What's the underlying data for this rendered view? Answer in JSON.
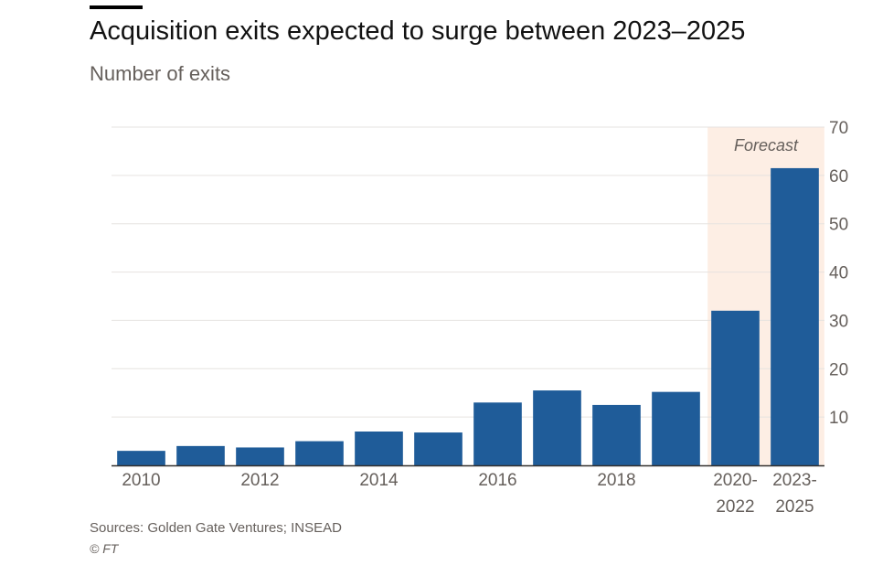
{
  "title": "Acquisition exits expected to surge between 2023–2025",
  "subtitle": "Number of exits",
  "source": "Sources: Golden Gate Ventures; INSEAD",
  "copyright": "© FT",
  "colors": {
    "bar": "#1f5c99",
    "forecast_band": "#fdeee4",
    "grid": "#e6e3e0",
    "axis": "#33302e",
    "text": "#66605c"
  },
  "chart_data": {
    "type": "bar",
    "title": "Acquisition exits expected to surge between 2023–2025",
    "subtitle": "Number of exits",
    "categories": [
      "2010",
      "2011",
      "2012",
      "2013",
      "2014",
      "2015",
      "2016",
      "2017",
      "2018",
      "2019",
      "2020-2022",
      "2023-2025"
    ],
    "category_tick_labels": [
      [
        "2010"
      ],
      [
        ""
      ],
      [
        "2012"
      ],
      [
        ""
      ],
      [
        "2014"
      ],
      [
        ""
      ],
      [
        "2016"
      ],
      [
        ""
      ],
      [
        "2018"
      ],
      [
        ""
      ],
      [
        "2020-",
        "2022"
      ],
      [
        "2023-",
        "2025"
      ]
    ],
    "values": [
      3,
      4,
      3.7,
      5,
      7,
      6.8,
      13,
      15.5,
      12.5,
      15.2,
      32,
      61.5
    ],
    "ylim": [
      0,
      70
    ],
    "yticks": [
      10,
      20,
      30,
      40,
      50,
      60,
      70
    ],
    "ytick_labels": [
      "10",
      "20",
      "30",
      "40",
      "50",
      "60",
      "70"
    ],
    "grid": true,
    "forecast": {
      "label": "Forecast",
      "categories": [
        "2020-2022",
        "2023-2025"
      ]
    },
    "xlabel": "",
    "ylabel": ""
  }
}
